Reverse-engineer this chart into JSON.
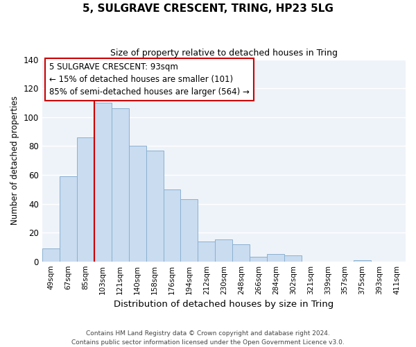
{
  "title": "5, SULGRAVE CRESCENT, TRING, HP23 5LG",
  "subtitle": "Size of property relative to detached houses in Tring",
  "xlabel": "Distribution of detached houses by size in Tring",
  "ylabel": "Number of detached properties",
  "bin_labels": [
    "49sqm",
    "67sqm",
    "85sqm",
    "103sqm",
    "121sqm",
    "140sqm",
    "158sqm",
    "176sqm",
    "194sqm",
    "212sqm",
    "230sqm",
    "248sqm",
    "266sqm",
    "284sqm",
    "302sqm",
    "321sqm",
    "339sqm",
    "357sqm",
    "375sqm",
    "393sqm",
    "411sqm"
  ],
  "bar_heights": [
    9,
    59,
    86,
    110,
    106,
    80,
    77,
    50,
    43,
    14,
    15,
    12,
    3,
    5,
    4,
    0,
    0,
    0,
    1,
    0,
    0
  ],
  "bar_color": "#c9dcf0",
  "bar_edge_color": "#8ab0d0",
  "vline_x_idx": 2.5,
  "vline_color": "#cc0000",
  "annotation_line1": "5 SULGRAVE CRESCENT: 93sqm",
  "annotation_line2": "← 15% of detached houses are smaller (101)",
  "annotation_line3": "85% of semi-detached houses are larger (564) →",
  "annotation_box_color": "#ffffff",
  "annotation_box_edge": "#cc0000",
  "ylim": [
    0,
    140
  ],
  "yticks": [
    0,
    20,
    40,
    60,
    80,
    100,
    120,
    140
  ],
  "footer_text": "Contains HM Land Registry data © Crown copyright and database right 2024.\nContains public sector information licensed under the Open Government Licence v3.0.",
  "bg_color": "#ffffff",
  "plot_bg_color": "#eef3f9",
  "grid_color": "#ffffff"
}
